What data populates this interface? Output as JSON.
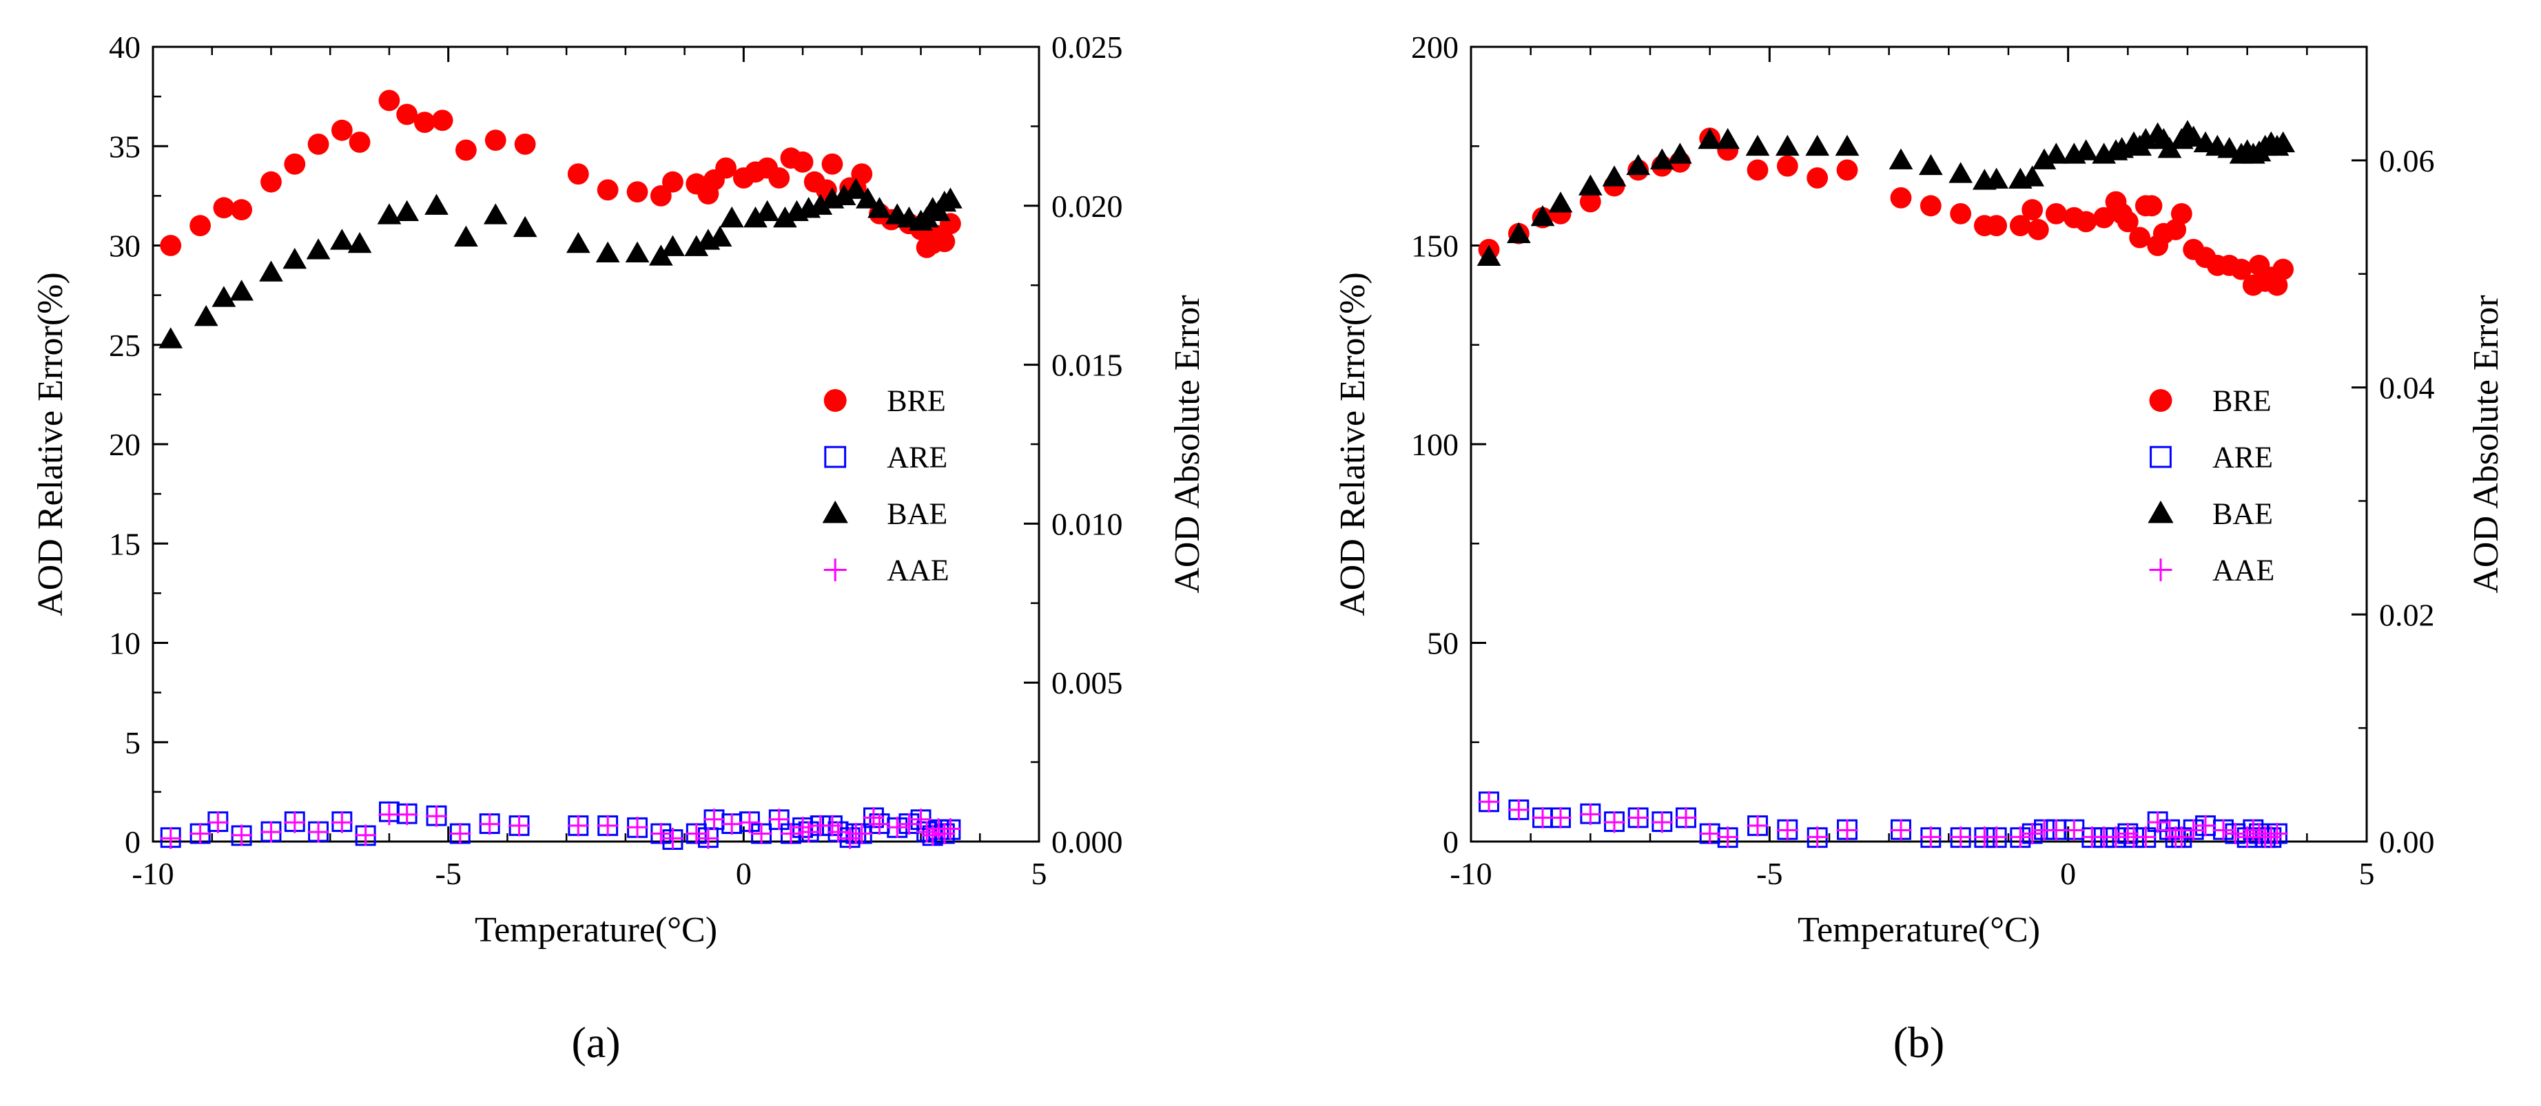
{
  "chart_data": [
    {
      "type": "scatter",
      "panel_label": "(a)",
      "xlabel": "Temperature(°C)",
      "ylabel": "AOD Relative Error(%)",
      "y2label": "AOD Absolute Error",
      "xlim": [
        -10,
        5
      ],
      "ylim": [
        0,
        40
      ],
      "y2lim": [
        0,
        0.025
      ],
      "x_ticks": [
        -10,
        -5,
        0,
        5
      ],
      "x_tick_labels": [
        "-10",
        "-5",
        "0",
        "5"
      ],
      "y_ticks": [
        0,
        5,
        10,
        15,
        20,
        25,
        30,
        35,
        40
      ],
      "y_tick_labels": [
        "0",
        "5",
        "10",
        "15",
        "20",
        "25",
        "30",
        "35",
        "40"
      ],
      "y2_ticks": [
        0,
        0.005,
        0.01,
        0.015,
        0.02,
        0.025
      ],
      "y2_tick_labels": [
        "0.000",
        "0.005",
        "0.010",
        "0.015",
        "0.020",
        "0.025"
      ],
      "legend_position": "right-middle",
      "series": [
        {
          "name": "BRE",
          "axis": "left",
          "marker": "circle",
          "color": "#ff0000",
          "x": [
            -9.7,
            -9.2,
            -8.8,
            -8.5,
            -8.0,
            -7.6,
            -7.2,
            -6.8,
            -6.5,
            -6.0,
            -5.7,
            -5.4,
            -5.1,
            -4.7,
            -4.2,
            -3.7,
            -2.8,
            -2.3,
            -1.8,
            -1.4,
            -1.2,
            -0.8,
            -0.6,
            -0.5,
            -0.3,
            0.0,
            0.2,
            0.4,
            0.6,
            0.8,
            1.0,
            1.2,
            1.4,
            1.5,
            1.8,
            1.9,
            2.0,
            2.3,
            2.5,
            2.8,
            3.0,
            3.1,
            3.2,
            3.3,
            3.4,
            3.5
          ],
          "y": [
            30.0,
            31.0,
            31.9,
            31.8,
            33.2,
            34.1,
            35.1,
            35.8,
            35.2,
            37.3,
            36.6,
            36.2,
            36.3,
            34.8,
            35.3,
            35.1,
            33.6,
            32.8,
            32.7,
            32.5,
            33.2,
            33.1,
            32.6,
            33.3,
            33.9,
            33.4,
            33.7,
            33.9,
            33.4,
            34.4,
            34.2,
            33.2,
            32.8,
            34.1,
            32.9,
            32.9,
            33.6,
            31.6,
            31.3,
            31.1,
            30.8,
            29.9,
            30.1,
            30.5,
            30.2,
            31.1
          ]
        },
        {
          "name": "ARE",
          "axis": "left",
          "marker": "square-open",
          "color": "#0000ff",
          "x": [
            -9.7,
            -9.2,
            -8.9,
            -8.5,
            -8.0,
            -7.6,
            -7.2,
            -6.8,
            -6.4,
            -6.0,
            -5.7,
            -5.2,
            -4.8,
            -4.3,
            -3.8,
            -2.8,
            -2.3,
            -1.8,
            -1.4,
            -1.2,
            -0.8,
            -0.6,
            -0.5,
            -0.2,
            0.1,
            0.3,
            0.6,
            0.8,
            1.0,
            1.1,
            1.3,
            1.5,
            1.6,
            1.8,
            1.9,
            2.0,
            2.2,
            2.3,
            2.6,
            2.8,
            3.0,
            3.1,
            3.2,
            3.3,
            3.4,
            3.5
          ],
          "y": [
            0.2,
            0.4,
            1.0,
            0.3,
            0.5,
            1.0,
            0.5,
            1.0,
            0.3,
            1.5,
            1.4,
            1.3,
            0.4,
            0.9,
            0.8,
            0.8,
            0.8,
            0.7,
            0.4,
            0.1,
            0.4,
            0.2,
            1.1,
            0.9,
            1.0,
            0.4,
            1.1,
            0.4,
            0.7,
            0.5,
            0.8,
            0.8,
            0.5,
            0.2,
            0.4,
            0.4,
            1.2,
            0.9,
            0.7,
            0.9,
            1.1,
            0.5,
            0.3,
            0.6,
            0.4,
            0.6
          ]
        },
        {
          "name": "BAE",
          "axis": "right",
          "marker": "triangle",
          "color": "#000000",
          "x": [
            -9.7,
            -9.1,
            -8.8,
            -8.5,
            -8.0,
            -7.6,
            -7.2,
            -6.8,
            -6.5,
            -6.0,
            -5.7,
            -5.2,
            -4.7,
            -4.2,
            -3.7,
            -2.8,
            -2.3,
            -1.8,
            -1.4,
            -1.2,
            -0.8,
            -0.6,
            -0.4,
            -0.2,
            0.2,
            0.4,
            0.7,
            0.9,
            1.1,
            1.3,
            1.5,
            1.7,
            1.9,
            2.1,
            2.3,
            2.6,
            2.8,
            3.0,
            3.1,
            3.2,
            3.3,
            3.4,
            3.5
          ],
          "y": [
            0.0158,
            0.0165,
            0.0171,
            0.0173,
            0.0179,
            0.0183,
            0.0186,
            0.0189,
            0.0188,
            0.0197,
            0.0198,
            0.02,
            0.019,
            0.0197,
            0.0193,
            0.0188,
            0.0185,
            0.0185,
            0.0184,
            0.0187,
            0.0187,
            0.0189,
            0.019,
            0.0196,
            0.0196,
            0.0198,
            0.0196,
            0.0198,
            0.0199,
            0.02,
            0.0202,
            0.0203,
            0.0205,
            0.0202,
            0.0199,
            0.0197,
            0.0196,
            0.0195,
            0.0196,
            0.0199,
            0.0198,
            0.0201,
            0.0202
          ]
        },
        {
          "name": "AAE",
          "axis": "right",
          "marker": "plus",
          "color": "#ff00ff",
          "x": [
            -9.7,
            -9.2,
            -8.9,
            -8.5,
            -8.0,
            -7.6,
            -7.2,
            -6.8,
            -6.4,
            -6.0,
            -5.7,
            -5.2,
            -4.8,
            -4.3,
            -3.8,
            -2.8,
            -2.3,
            -1.8,
            -1.4,
            -1.2,
            -0.8,
            -0.6,
            -0.5,
            -0.2,
            0.1,
            0.3,
            0.6,
            0.8,
            1.0,
            1.1,
            1.3,
            1.5,
            1.6,
            1.8,
            1.9,
            2.0,
            2.2,
            2.3,
            2.6,
            2.8,
            3.0,
            3.1,
            3.2,
            3.3,
            3.4,
            3.5
          ],
          "y": [
            0.0001,
            0.00025,
            0.0006,
            0.0002,
            0.0003,
            0.0006,
            0.0003,
            0.0006,
            0.0002,
            0.00085,
            0.00085,
            0.0008,
            0.00025,
            0.00055,
            0.0005,
            0.0005,
            0.0005,
            0.00045,
            0.00025,
            0.0001,
            0.00025,
            0.0001,
            0.0007,
            0.00055,
            0.0006,
            0.00025,
            0.0007,
            0.00025,
            0.00045,
            0.0003,
            0.0005,
            0.0005,
            0.0003,
            0.0001,
            0.00025,
            0.00025,
            0.00075,
            0.00055,
            0.00045,
            0.00055,
            0.0007,
            0.0003,
            0.0002,
            0.0004,
            0.00025,
            0.0004
          ]
        }
      ]
    },
    {
      "type": "scatter",
      "panel_label": "(b)",
      "xlabel": "Temperature(°C)",
      "ylabel": "AOD Relative Error(%)",
      "y2label": "AOD Absolute Error",
      "xlim": [
        -10,
        5
      ],
      "ylim": [
        0,
        200
      ],
      "y2lim": [
        0,
        0.07
      ],
      "x_ticks": [
        -10,
        -5,
        0,
        5
      ],
      "x_tick_labels": [
        "-10",
        "-5",
        "0",
        "5"
      ],
      "y_ticks": [
        0,
        50,
        100,
        150,
        200
      ],
      "y_tick_labels": [
        "0",
        "50",
        "100",
        "150",
        "200"
      ],
      "y2_ticks": [
        0,
        0.02,
        0.04,
        0.06
      ],
      "y2_tick_labels": [
        "0.00",
        "0.02",
        "0.04",
        "0.06"
      ],
      "legend_position": "right-middle",
      "series": [
        {
          "name": "BRE",
          "axis": "left",
          "marker": "circle",
          "color": "#ff0000",
          "x": [
            -9.7,
            -9.2,
            -8.8,
            -8.5,
            -8.0,
            -7.6,
            -7.2,
            -6.8,
            -6.5,
            -6.0,
            -5.7,
            -5.2,
            -4.7,
            -4.2,
            -3.7,
            -2.8,
            -2.3,
            -1.8,
            -1.4,
            -1.2,
            -0.8,
            -0.6,
            -0.5,
            -0.2,
            0.1,
            0.3,
            0.6,
            0.8,
            0.9,
            1.0,
            1.2,
            1.3,
            1.4,
            1.5,
            1.6,
            1.8,
            1.9,
            2.1,
            2.3,
            2.5,
            2.7,
            2.9,
            3.1,
            3.2,
            3.3,
            3.4,
            3.5,
            3.6
          ],
          "y": [
            149,
            153,
            157,
            158,
            161,
            165,
            169,
            170,
            171,
            177,
            174,
            169,
            170,
            167,
            169,
            162,
            160,
            158,
            155,
            155,
            155,
            159,
            154,
            158,
            157,
            156,
            157,
            161,
            158,
            156,
            152,
            160,
            160,
            150,
            153,
            154,
            158,
            149,
            147,
            145,
            145,
            144,
            140,
            145,
            141,
            142,
            140,
            144
          ]
        },
        {
          "name": "ARE",
          "axis": "left",
          "marker": "square-open",
          "color": "#0000ff",
          "x": [
            -9.7,
            -9.2,
            -8.8,
            -8.5,
            -8.0,
            -7.6,
            -7.2,
            -6.8,
            -6.4,
            -6.0,
            -5.7,
            -5.2,
            -4.7,
            -4.2,
            -3.7,
            -2.8,
            -2.3,
            -1.8,
            -1.4,
            -1.2,
            -0.8,
            -0.6,
            -0.4,
            -0.2,
            0.1,
            0.4,
            0.6,
            0.8,
            1.0,
            1.1,
            1.3,
            1.5,
            1.7,
            1.8,
            1.9,
            2.1,
            2.3,
            2.6,
            2.8,
            3.0,
            3.1,
            3.2,
            3.3,
            3.4,
            3.5
          ],
          "y": [
            10,
            8,
            6,
            6,
            7,
            5,
            6,
            5,
            6,
            2,
            1,
            4,
            3,
            1,
            3,
            3,
            1,
            1,
            1,
            1,
            1,
            2,
            3,
            3,
            3,
            1,
            1,
            1,
            2,
            1,
            1,
            5,
            3,
            1,
            1,
            3,
            4,
            3,
            2,
            1,
            3,
            2,
            1,
            1,
            2
          ]
        },
        {
          "name": "BAE",
          "axis": "right",
          "marker": "triangle",
          "color": "#000000",
          "x": [
            -9.7,
            -9.2,
            -8.8,
            -8.5,
            -8.0,
            -7.6,
            -7.2,
            -6.8,
            -6.5,
            -6.0,
            -5.7,
            -5.2,
            -4.7,
            -4.2,
            -3.7,
            -2.8,
            -2.3,
            -1.8,
            -1.4,
            -1.2,
            -0.8,
            -0.6,
            -0.4,
            -0.2,
            0.1,
            0.3,
            0.6,
            0.8,
            0.9,
            1.1,
            1.2,
            1.3,
            1.5,
            1.6,
            1.7,
            1.9,
            2.0,
            2.1,
            2.3,
            2.5,
            2.7,
            2.9,
            3.0,
            3.1,
            3.2,
            3.3,
            3.4,
            3.5,
            3.6
          ],
          "y": [
            0.0515,
            0.0535,
            0.055,
            0.0562,
            0.0577,
            0.0585,
            0.0595,
            0.06,
            0.0605,
            0.0618,
            0.0618,
            0.0612,
            0.0612,
            0.0612,
            0.0612,
            0.06,
            0.0595,
            0.0588,
            0.0582,
            0.0583,
            0.0583,
            0.0585,
            0.06,
            0.0605,
            0.0605,
            0.0608,
            0.0605,
            0.0608,
            0.061,
            0.0615,
            0.0612,
            0.0618,
            0.0623,
            0.0618,
            0.061,
            0.0618,
            0.0625,
            0.062,
            0.0615,
            0.0612,
            0.061,
            0.0605,
            0.0608,
            0.0605,
            0.0607,
            0.0612,
            0.0615,
            0.0612,
            0.0615
          ]
        },
        {
          "name": "AAE",
          "axis": "right",
          "marker": "plus",
          "color": "#ff00ff",
          "x": [
            -9.7,
            -9.2,
            -8.8,
            -8.5,
            -8.0,
            -7.6,
            -7.2,
            -6.8,
            -6.4,
            -6.0,
            -5.7,
            -5.2,
            -4.7,
            -4.2,
            -3.7,
            -2.8,
            -2.3,
            -1.8,
            -1.4,
            -1.2,
            -0.8,
            -0.6,
            -0.4,
            -0.2,
            0.1,
            0.4,
            0.6,
            0.8,
            1.0,
            1.1,
            1.3,
            1.5,
            1.7,
            1.8,
            1.9,
            2.1,
            2.3,
            2.6,
            2.8,
            3.0,
            3.1,
            3.2,
            3.3,
            3.4,
            3.5
          ],
          "y": [
            0.0035,
            0.0028,
            0.0021,
            0.0021,
            0.0024,
            0.0017,
            0.0021,
            0.0017,
            0.0021,
            0.0007,
            0.0004,
            0.0014,
            0.001,
            0.0004,
            0.001,
            0.001,
            0.0004,
            0.0004,
            0.0004,
            0.0004,
            0.0004,
            0.0007,
            0.001,
            0.001,
            0.001,
            0.0004,
            0.0004,
            0.0004,
            0.0007,
            0.0004,
            0.0004,
            0.0017,
            0.001,
            0.0004,
            0.0004,
            0.001,
            0.0014,
            0.001,
            0.0007,
            0.0004,
            0.001,
            0.0007,
            0.0004,
            0.0004,
            0.0007
          ]
        }
      ]
    }
  ]
}
